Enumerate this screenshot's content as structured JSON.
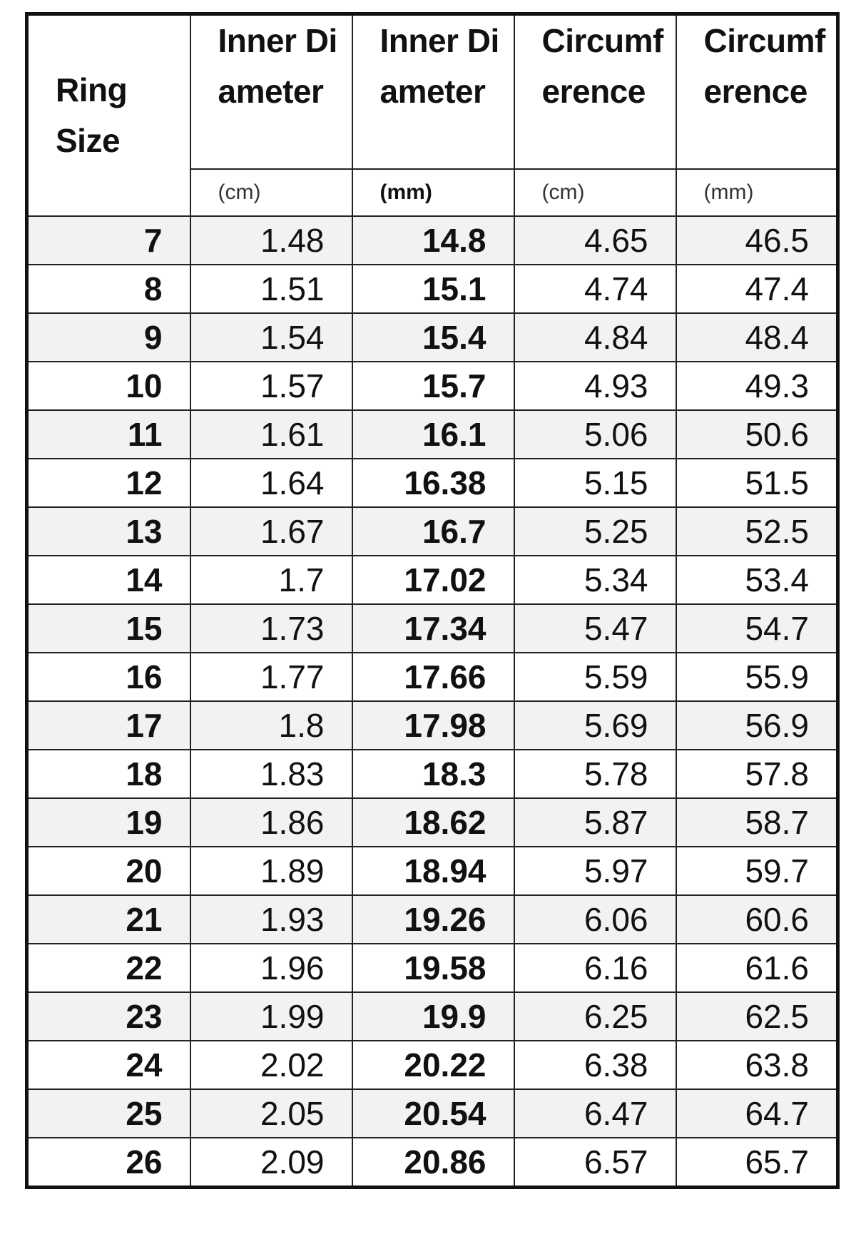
{
  "headers": [
    {
      "label": "Ring Size"
    },
    {
      "label": "Inner Diameter",
      "unit": "(cm)"
    },
    {
      "label": "Inner Diameter",
      "unit": "(mm)"
    },
    {
      "label": "Circumference",
      "unit": "(cm)"
    },
    {
      "label": "Circumference",
      "unit": "(mm)"
    }
  ],
  "rows": [
    [
      "7",
      "1.48",
      "14.8",
      "4.65",
      "46.5"
    ],
    [
      "8",
      "1.51",
      "15.1",
      "4.74",
      "47.4"
    ],
    [
      "9",
      "1.54",
      "15.4",
      "4.84",
      "48.4"
    ],
    [
      "10",
      "1.57",
      "15.7",
      "4.93",
      "49.3"
    ],
    [
      "11",
      "1.61",
      "16.1",
      "5.06",
      "50.6"
    ],
    [
      "12",
      "1.64",
      "16.38",
      "5.15",
      "51.5"
    ],
    [
      "13",
      "1.67",
      "16.7",
      "5.25",
      "52.5"
    ],
    [
      "14",
      "1.7",
      "17.02",
      "5.34",
      "53.4"
    ],
    [
      "15",
      "1.73",
      "17.34",
      "5.47",
      "54.7"
    ],
    [
      "16",
      "1.77",
      "17.66",
      "5.59",
      "55.9"
    ],
    [
      "17",
      "1.8",
      "17.98",
      "5.69",
      "56.9"
    ],
    [
      "18",
      "1.83",
      "18.3",
      "5.78",
      "57.8"
    ],
    [
      "19",
      "1.86",
      "18.62",
      "5.87",
      "58.7"
    ],
    [
      "20",
      "1.89",
      "18.94",
      "5.97",
      "59.7"
    ],
    [
      "21",
      "1.93",
      "19.26",
      "6.06",
      "60.6"
    ],
    [
      "22",
      "1.96",
      "19.58",
      "6.16",
      "61.6"
    ],
    [
      "23",
      "1.99",
      "19.9",
      "6.25",
      "62.5"
    ],
    [
      "24",
      "2.02",
      "20.22",
      "6.38",
      "63.8"
    ],
    [
      "25",
      "2.05",
      "20.54",
      "6.47",
      "64.7"
    ],
    [
      "26",
      "2.09",
      "20.86",
      "6.57",
      "65.7"
    ]
  ],
  "colors": {
    "alt_row": "#f2f2f2",
    "border": "#111111"
  }
}
